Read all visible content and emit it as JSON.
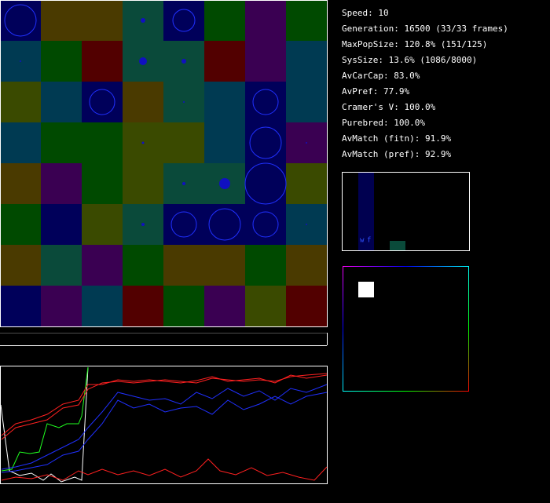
{
  "stats": [
    "Speed: 10",
    "Generation: 16500 (33/33 frames)",
    "MaxPopSize: 120.8% (151/125)",
    "SysSize: 13.6% (1086/8000)",
    "AvCarCap: 83.0%",
    "AvPref: 77.9%",
    "Cramer's V: 100.0%",
    "Purebred: 100.0%",
    "AvMatch (fitn): 91.9%",
    "AvMatch (pref): 92.9%"
  ],
  "histogram": {
    "labels": [
      "w",
      "f"
    ]
  }
}
